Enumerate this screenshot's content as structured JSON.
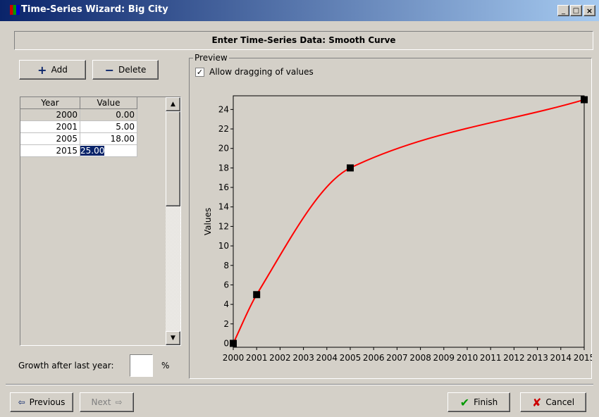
{
  "window": {
    "title": "Time-Series Wizard: Big City"
  },
  "header": "Enter Time-Series Data: Smooth Curve",
  "buttons": {
    "add": "Add",
    "delete": "Delete",
    "previous": "Previous",
    "next": "Next",
    "finish": "Finish",
    "cancel": "Cancel"
  },
  "table": {
    "columns": [
      "Year",
      "Value"
    ],
    "rows": [
      [
        "2000",
        "0.00"
      ],
      [
        "2001",
        "5.00"
      ],
      [
        "2005",
        "18.00"
      ],
      [
        "2015",
        "25.00"
      ]
    ]
  },
  "growth": {
    "label": "Growth after last year:",
    "unit": "%"
  },
  "preview": {
    "label": "Preview",
    "checkbox": "Allow dragging of values"
  },
  "chart_data": {
    "type": "line",
    "y_label": "Values",
    "x": [
      2000,
      2001,
      2005,
      2015
    ],
    "values": [
      0,
      5,
      18,
      25
    ],
    "color": "#ff0000",
    "marker_color": "#000000",
    "xlim": [
      2000,
      2015
    ],
    "xticks": [
      2000,
      2001,
      2002,
      2003,
      2004,
      2005,
      2006,
      2007,
      2008,
      2009,
      2010,
      2011,
      2012,
      2013,
      2014,
      2015
    ],
    "ylim": [
      -0.4,
      25.4
    ],
    "yticks": [
      0,
      2,
      4,
      6,
      8,
      10,
      12,
      14,
      16,
      18,
      20,
      22,
      24
    ]
  }
}
